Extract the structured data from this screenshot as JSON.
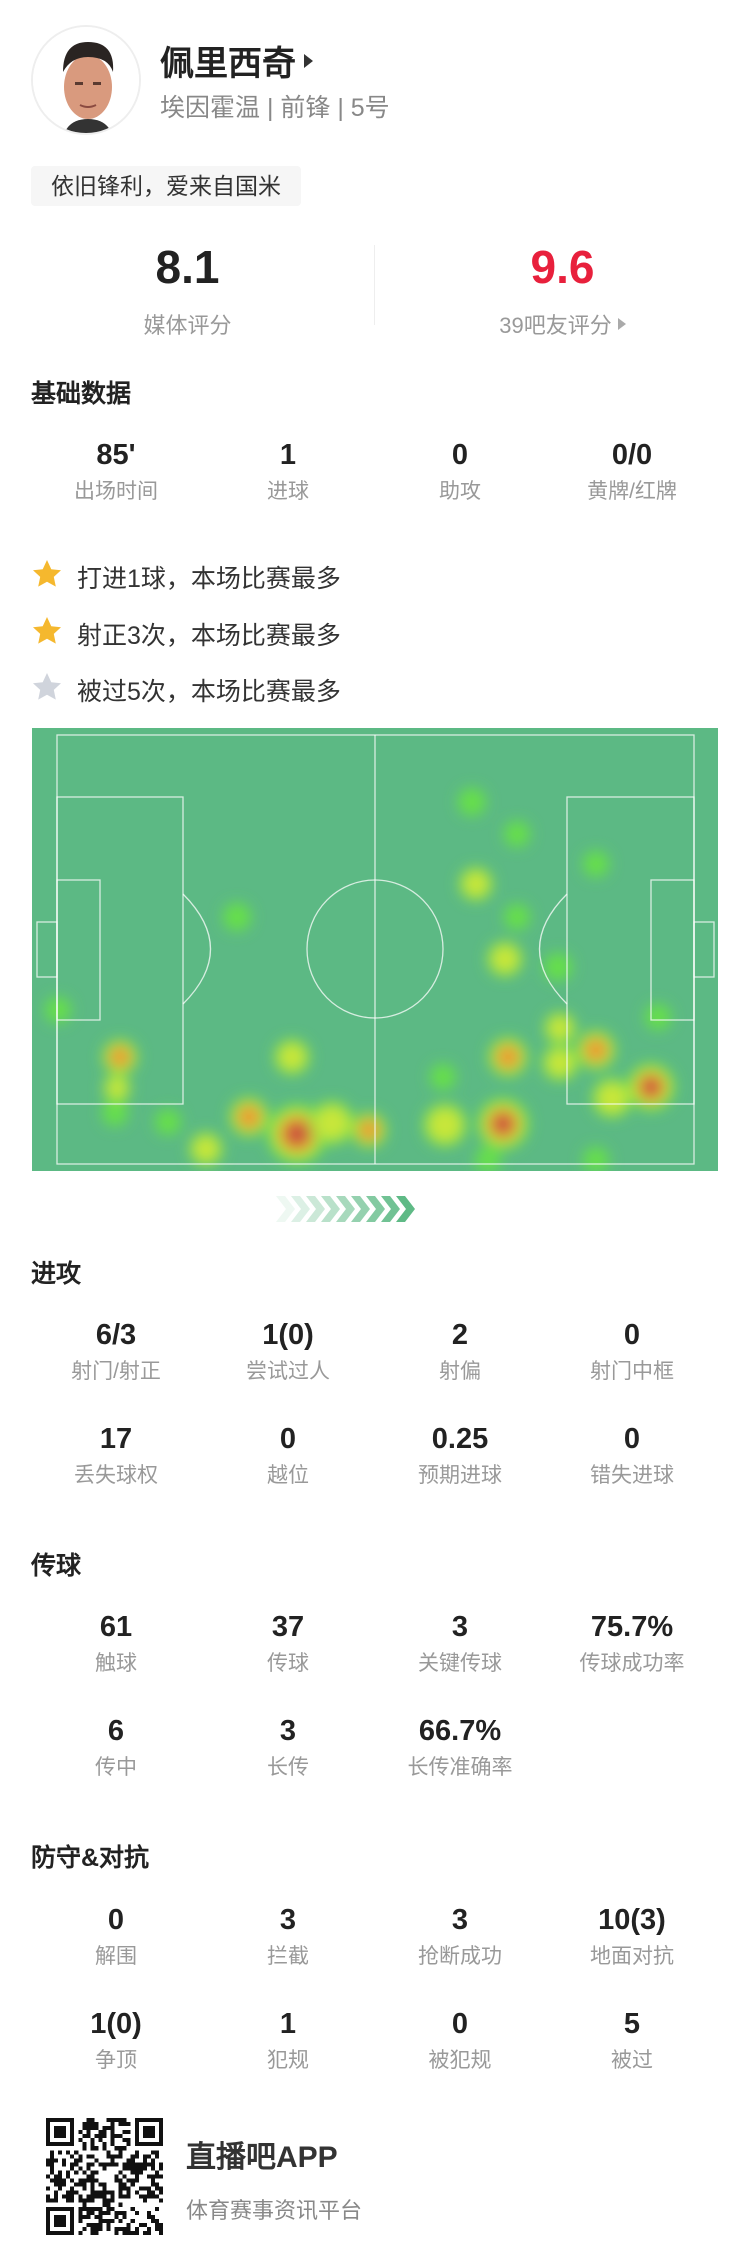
{
  "player": {
    "name": "佩里西奇",
    "subtitle": "埃因霍温 | 前锋 | 5号",
    "quote": "依旧锋利，爱来自国米"
  },
  "ratings": {
    "media_value": "8.1",
    "media_label": "媒体评分",
    "fan_value": "9.6",
    "fan_label": "39吧友评分",
    "fan_color": "#e8203c"
  },
  "basic": {
    "title": "基础数据",
    "stats": [
      {
        "value": "85'",
        "label": "出场时间"
      },
      {
        "value": "1",
        "label": "进球"
      },
      {
        "value": "0",
        "label": "助攻"
      },
      {
        "value": "0/0",
        "label": "黄牌/红牌"
      }
    ]
  },
  "highlights": [
    {
      "icon": "star-gold",
      "text": "打进1球，本场比赛最多"
    },
    {
      "icon": "star-gold",
      "text": "射正3次，本场比赛最多"
    },
    {
      "icon": "star-silver",
      "text": "被过5次，本场比赛最多"
    }
  ],
  "colors": {
    "pitch": "#5cb984",
    "star_gold": "#f5b82e",
    "star_silver": "#d0d4dc",
    "chevron": "#5cb984"
  },
  "attack": {
    "title": "进攻",
    "stats": [
      {
        "value": "6/3",
        "label": "射门/射正"
      },
      {
        "value": "1(0)",
        "label": "尝试过人"
      },
      {
        "value": "2",
        "label": "射偏"
      },
      {
        "value": "0",
        "label": "射门中框"
      },
      {
        "value": "17",
        "label": "丢失球权"
      },
      {
        "value": "0",
        "label": "越位"
      },
      {
        "value": "0.25",
        "label": "预期进球"
      },
      {
        "value": "0",
        "label": "错失进球"
      }
    ]
  },
  "passing": {
    "title": "传球",
    "stats": [
      {
        "value": "61",
        "label": "触球"
      },
      {
        "value": "37",
        "label": "传球"
      },
      {
        "value": "3",
        "label": "关键传球"
      },
      {
        "value": "75.7%",
        "label": "传球成功率"
      },
      {
        "value": "6",
        "label": "传中"
      },
      {
        "value": "3",
        "label": "长传"
      },
      {
        "value": "66.7%",
        "label": "长传准确率"
      }
    ]
  },
  "defense": {
    "title": "防守&对抗",
    "stats": [
      {
        "value": "0",
        "label": "解围"
      },
      {
        "value": "3",
        "label": "拦截"
      },
      {
        "value": "3",
        "label": "抢断成功"
      },
      {
        "value": "10(3)",
        "label": "地面对抗"
      },
      {
        "value": "1(0)",
        "label": "争顶"
      },
      {
        "value": "1",
        "label": "犯规"
      },
      {
        "value": "0",
        "label": "被犯规"
      },
      {
        "value": "5",
        "label": "被过"
      }
    ]
  },
  "footer": {
    "app_name": "直播吧APP",
    "tagline": "体育赛事资讯平台"
  }
}
